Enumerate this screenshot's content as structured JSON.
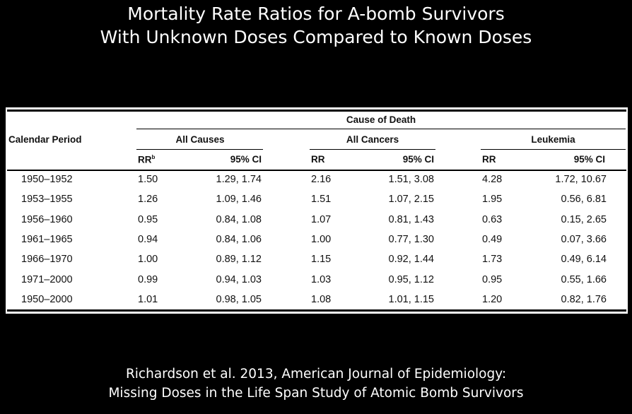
{
  "title": [
    "Mortality Rate Ratios for A-bomb Survivors",
    "With Unknown Doses Compared to Known Doses"
  ],
  "table": {
    "row_header": "Calendar Period",
    "spanner": "Cause of Death",
    "groups": [
      "All Causes",
      "All Cancers",
      "Leukemia"
    ],
    "subheaders": {
      "rr_first": "RR",
      "rr_first_sup": "b",
      "rr": "RR",
      "ci": "95% CI"
    },
    "rows": [
      [
        "1950–1952",
        "1.50",
        "1.29, 1.74",
        "2.16",
        "1.51, 3.08",
        "4.28",
        "1.72, 10.67"
      ],
      [
        "1953–1955",
        "1.26",
        "1.09, 1.46",
        "1.51",
        "1.07, 2.15",
        "1.95",
        "0.56, 6.81"
      ],
      [
        "1956–1960",
        "0.95",
        "0.84, 1.08",
        "1.07",
        "0.81, 1.43",
        "0.63",
        "0.15, 2.65"
      ],
      [
        "1961–1965",
        "0.94",
        "0.84, 1.06",
        "1.00",
        "0.77, 1.30",
        "0.49",
        "0.07, 3.66"
      ],
      [
        "1966–1970",
        "1.00",
        "0.89, 1.12",
        "1.15",
        "0.92, 1.44",
        "1.73",
        "0.49, 6.14"
      ],
      [
        "1971–2000",
        "0.99",
        "0.94, 1.03",
        "1.03",
        "0.95, 1.12",
        "0.95",
        "0.55, 1.66"
      ],
      [
        "1950–2000",
        "1.01",
        "0.98, 1.05",
        "1.08",
        "1.01, 1.15",
        "1.20",
        "0.82, 1.76"
      ]
    ]
  },
  "footer": [
    "Richardson et al. 2013, American Journal of Epidemiology:",
    "Missing Doses in the Life Span Study of Atomic Bomb Survivors"
  ]
}
